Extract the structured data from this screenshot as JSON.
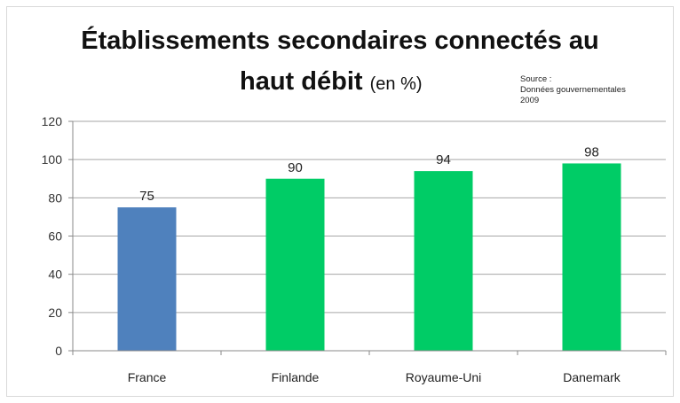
{
  "title": {
    "line1": "Établissements secondaires connectés au",
    "line2": "haut débit",
    "unit": "(en %)"
  },
  "source": {
    "line1": "Source :",
    "line2": "Données gouvernementales",
    "line3": "2009"
  },
  "colors": {
    "france": "#4f81bd",
    "others": "#00cc66",
    "grid": "#a6a6a6"
  },
  "chart_data": {
    "type": "bar",
    "categories": [
      "France",
      "Finlande",
      "Royaume-Uni",
      "Danemark"
    ],
    "values": [
      75,
      90,
      94,
      98
    ],
    "bar_colors": [
      "#4f81bd",
      "#00cc66",
      "#00cc66",
      "#00cc66"
    ],
    "ylim": [
      0,
      120
    ],
    "yticks": [
      0,
      20,
      40,
      60,
      80,
      100,
      120
    ],
    "grid": true,
    "data_labels": true,
    "legend": "none"
  }
}
